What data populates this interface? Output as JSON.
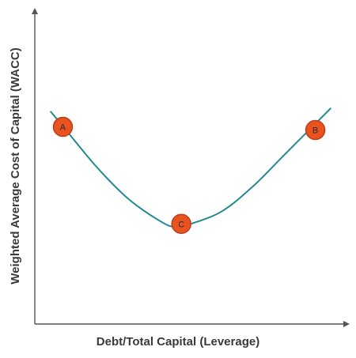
{
  "chart_data": {
    "type": "line",
    "title": "",
    "xlabel": "Debt/Total Capital (Leverage)",
    "ylabel": "Weighted Average Cost of Capital (WACC)",
    "axis_ticks": false,
    "grid": false,
    "x_range": [
      0,
      1
    ],
    "y_range": [
      0,
      1
    ],
    "series": [
      {
        "name": "",
        "color": "#1f8a8f",
        "x": [
          0.05,
          0.1,
          0.2,
          0.3,
          0.4,
          0.45,
          0.5,
          0.6,
          0.7,
          0.8,
          0.9,
          0.95
        ],
        "y": [
          0.68,
          0.62,
          0.5,
          0.4,
          0.33,
          0.31,
          0.32,
          0.36,
          0.44,
          0.54,
          0.64,
          0.69
        ]
      }
    ],
    "markers": [
      {
        "label": "A",
        "x": 0.09,
        "y": 0.63
      },
      {
        "label": "C",
        "x": 0.47,
        "y": 0.32
      },
      {
        "label": "B",
        "x": 0.9,
        "y": 0.62
      }
    ],
    "marker_fill": "#e8531e",
    "marker_stroke": "#b8401a",
    "axis_color": "#555555"
  }
}
